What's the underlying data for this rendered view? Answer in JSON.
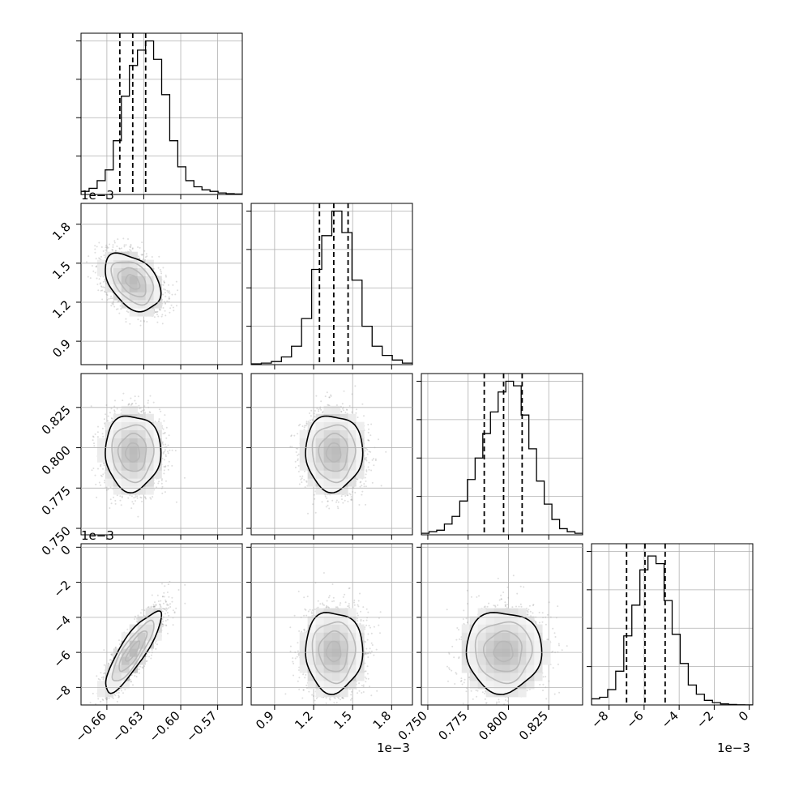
{
  "chart_data": {
    "type": "corner",
    "colors": {
      "line": "#000000",
      "grid": "#b0b0b0",
      "points": "#888888",
      "fill_dark": "#000000"
    },
    "parameters": [
      {
        "mean": -0.639,
        "std": 0.0113,
        "lim": [
          -0.681,
          -0.55
        ],
        "ticks": [
          -0.66,
          -0.63,
          -0.6,
          -0.57
        ],
        "tick_labels": [
          "−0.66",
          "−0.63",
          "−0.60",
          "−0.57"
        ],
        "quantiles": [
          -0.6495,
          -0.639,
          -0.6285
        ]
      },
      {
        "mean": 1.355,
        "std": 0.11,
        "lim": [
          0.72,
          1.96
        ],
        "ticks": [
          0.9,
          1.2,
          1.5,
          1.8
        ],
        "tick_labels": [
          "0.9",
          "1.2",
          "1.5",
          "1.8"
        ],
        "quantiles": [
          1.245,
          1.355,
          1.465
        ],
        "offset": "1e−3"
      },
      {
        "mean": 0.797,
        "std": 0.0117,
        "lim": [
          0.746,
          0.846
        ],
        "ticks": [
          0.75,
          0.775,
          0.8,
          0.825
        ],
        "tick_labels": [
          "0.750",
          "0.775",
          "0.800",
          "0.825"
        ],
        "quantiles": [
          0.785,
          0.797,
          0.8085
        ]
      },
      {
        "mean": -5.95,
        "std": 1.15,
        "lim": [
          -9.0,
          0.2
        ],
        "ticks": [
          -8,
          -6,
          -4,
          -2,
          0
        ],
        "tick_labels": [
          "−8",
          "−6",
          "−4",
          "−2",
          "0"
        ],
        "quantiles": [
          -7.0,
          -5.95,
          -4.8
        ],
        "offset": "1e−3"
      }
    ],
    "correlations": [
      [
        1,
        -0.4,
        0.0,
        0.85
      ],
      [
        -0.4,
        1,
        0.0,
        0.0
      ],
      [
        0.0,
        0.0,
        1,
        0.0
      ],
      [
        0.85,
        0.0,
        0.0,
        1
      ]
    ],
    "histograms": [
      [
        0.02,
        0.04,
        0.09,
        0.16,
        0.35,
        0.64,
        0.84,
        0.94,
        1.0,
        0.88,
        0.65,
        0.35,
        0.18,
        0.09,
        0.05,
        0.03,
        0.02,
        0.01,
        0.005,
        0.003
      ],
      [
        0.005,
        0.01,
        0.02,
        0.05,
        0.12,
        0.3,
        0.62,
        0.84,
        1.0,
        0.86,
        0.55,
        0.25,
        0.12,
        0.06,
        0.03,
        0.01
      ],
      [
        0.01,
        0.02,
        0.03,
        0.07,
        0.12,
        0.22,
        0.36,
        0.5,
        0.66,
        0.8,
        0.93,
        1.0,
        0.97,
        0.78,
        0.56,
        0.35,
        0.2,
        0.1,
        0.04,
        0.02,
        0.01
      ],
      [
        0.04,
        0.05,
        0.1,
        0.22,
        0.45,
        0.65,
        0.88,
        0.97,
        0.92,
        0.68,
        0.46,
        0.27,
        0.13,
        0.07,
        0.03,
        0.015,
        0.007,
        0.003,
        0.001,
        0.0005
      ]
    ],
    "hist_ylim_factor": 1.05,
    "xlabel": "",
    "ylabel": "",
    "title": "",
    "grid": true
  }
}
